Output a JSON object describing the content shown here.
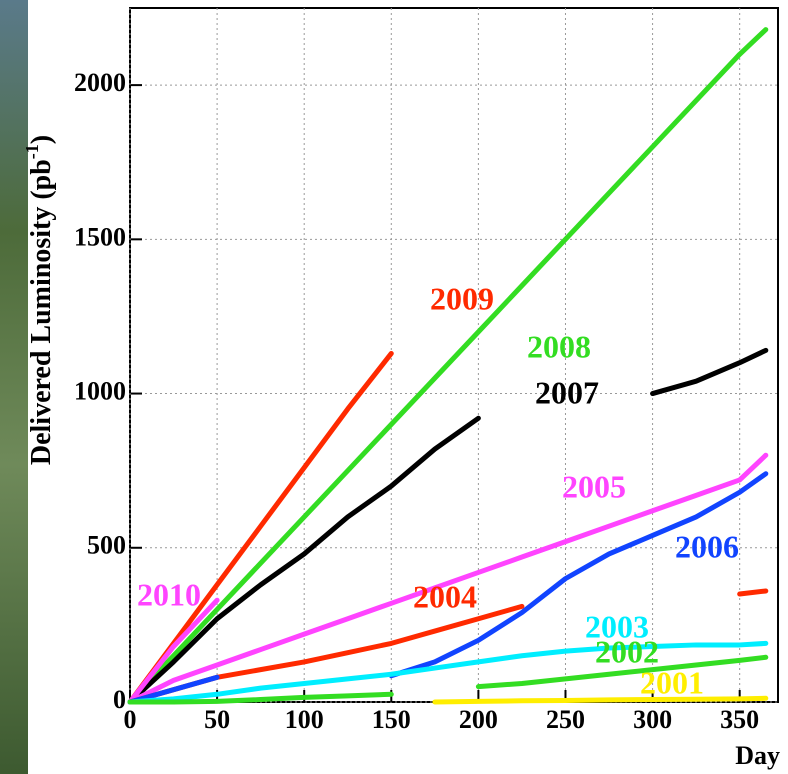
{
  "chart_data": {
    "type": "line",
    "y_label": [
      "Delivered Luminosity (pb",
      "-1",
      ")"
    ],
    "x_label": "Day",
    "x": [
      0,
      25,
      50,
      75,
      100,
      125,
      150,
      175,
      200,
      225,
      250,
      275,
      300,
      325,
      350,
      365
    ],
    "xlim": [
      0,
      372
    ],
    "xticks": [
      0,
      50,
      100,
      150,
      200,
      250,
      300,
      350
    ],
    "ylim": [
      0,
      2250
    ],
    "yticks": [
      0,
      500,
      1000,
      1500,
      2000
    ],
    "grid": true,
    "series": [
      {
        "name": "2009",
        "color": "#ff2a00",
        "values": [
          0,
          190,
          380,
          570,
          760,
          950,
          1130,
          null,
          null,
          null,
          null,
          null,
          null,
          null,
          null,
          null
        ]
      },
      {
        "name": "2008",
        "color": "#33dd22",
        "values": [
          0,
          150,
          300,
          450,
          600,
          750,
          900,
          1050,
          1200,
          1350,
          1500,
          1650,
          1800,
          1950,
          2100,
          2180
        ]
      },
      {
        "name": "2007",
        "color": "#000000",
        "values": [
          0,
          130,
          270,
          380,
          480,
          600,
          700,
          820,
          920,
          null,
          null,
          null,
          1000,
          1040,
          1100,
          1140
        ]
      },
      {
        "name": "2005",
        "color": "#ff44ff",
        "values": [
          0,
          70,
          120,
          170,
          220,
          270,
          320,
          370,
          420,
          470,
          520,
          570,
          620,
          670,
          720,
          800
        ]
      },
      {
        "name": "2010",
        "color": "#ff44ff",
        "values": [
          0,
          180,
          330,
          null,
          null,
          null,
          null,
          null,
          null,
          null,
          null,
          null,
          null,
          null,
          null,
          null
        ]
      },
      {
        "name": "2004",
        "color": "#ff2a00",
        "values": [
          0,
          40,
          80,
          105,
          130,
          160,
          190,
          230,
          270,
          310,
          null,
          null,
          null,
          null,
          350,
          360
        ]
      },
      {
        "name": "2006",
        "color": "#1144ff",
        "values": [
          0,
          40,
          80,
          null,
          null,
          null,
          85,
          130,
          200,
          290,
          400,
          480,
          540,
          600,
          680,
          740
        ]
      },
      {
        "name": "2003",
        "color": "#00eeff",
        "values": [
          0,
          10,
          25,
          45,
          60,
          75,
          90,
          110,
          130,
          150,
          165,
          175,
          180,
          185,
          185,
          190
        ]
      },
      {
        "name": "2002",
        "color": "#33dd22",
        "values": [
          0,
          0,
          2,
          8,
          15,
          20,
          25,
          null,
          50,
          60,
          75,
          90,
          105,
          120,
          135,
          145
        ]
      },
      {
        "name": "2001",
        "color": "#ffee00",
        "values": [
          null,
          null,
          null,
          null,
          null,
          null,
          null,
          0,
          2,
          4,
          5,
          7,
          8,
          9,
          10,
          12
        ]
      }
    ]
  }
}
